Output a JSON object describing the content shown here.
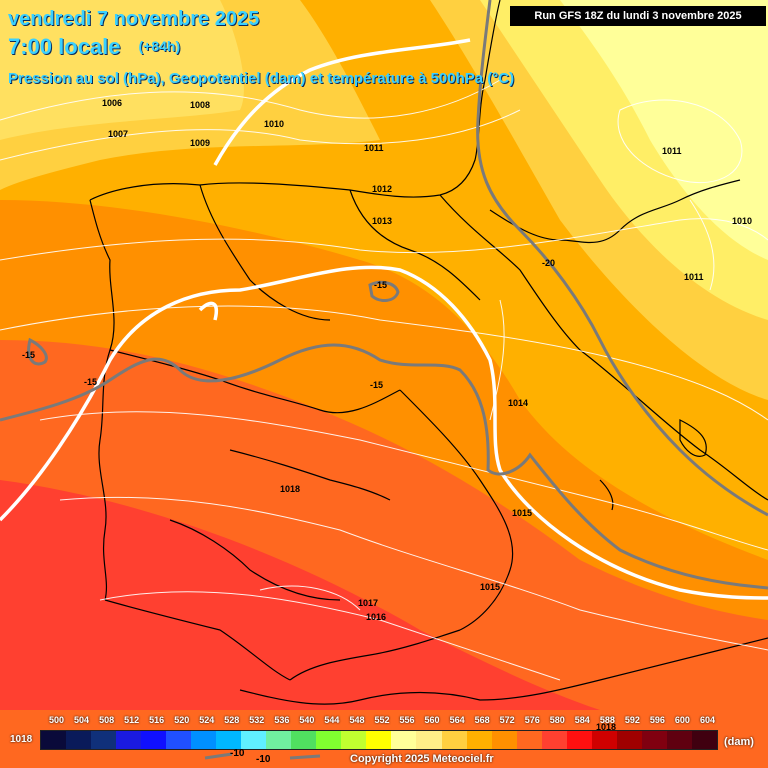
{
  "title": {
    "line1": "vendredi 7 novembre 2025",
    "line2": "7:00 locale",
    "step": "(+84h)",
    "subtitle": "Pression au sol (hPa), Geopotentiel (dam) et température à 500hPa (°C)"
  },
  "run_info": "Run GFS 18Z du lundi 3 novembre 2025",
  "copyright": "Copyright 2025 Meteociel.fr",
  "scale": {
    "unit": "(dam)",
    "left_value": "1018",
    "values": [
      "500",
      "504",
      "508",
      "512",
      "516",
      "520",
      "524",
      "528",
      "532",
      "536",
      "540",
      "544",
      "548",
      "552",
      "556",
      "560",
      "564",
      "568",
      "572",
      "576",
      "580",
      "584",
      "588",
      "592",
      "596",
      "600",
      "604"
    ],
    "colors": [
      "#0a0a3a",
      "#0a1a5a",
      "#10307a",
      "#1a1ae0",
      "#1010ff",
      "#2050ff",
      "#0090ff",
      "#00b8ff",
      "#60f0ff",
      "#70f0a0",
      "#50e060",
      "#80ff30",
      "#c0ff30",
      "#ffff00",
      "#ffff99",
      "#ffee88",
      "#ffd040",
      "#ffb000",
      "#ff9000",
      "#ff6820",
      "#ff4030",
      "#ff1010",
      "#d00000",
      "#a00000",
      "#800010",
      "#600010",
      "#400010"
    ],
    "line_legend": [
      "-10",
      "-10"
    ]
  },
  "pressure_labels": [
    "1006",
    "1007",
    "1008",
    "1009",
    "1010",
    "1011",
    "1012",
    "1013",
    "1011",
    "1010",
    "1011",
    "1014",
    "1015",
    "1015",
    "1018",
    "1017",
    "1016",
    "1018"
  ],
  "temp_labels": [
    "-15",
    "-15",
    "-15",
    "-15",
    "-20"
  ]
}
